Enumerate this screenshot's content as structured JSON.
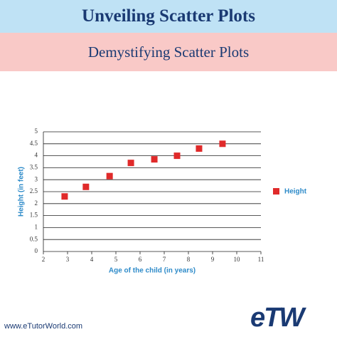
{
  "chart_data": {
    "type": "scatter",
    "title": "Unveiling Scatter Plots",
    "subtitle": "Demystifying Scatter Plots",
    "xlabel": "Age of the child (in years)",
    "ylabel": "Height (in feet)",
    "series": [
      {
        "name": "Height",
        "color": "#e02a2a",
        "x": [
          2.88,
          3.76,
          4.74,
          5.62,
          6.59,
          7.53,
          8.44,
          9.41
        ],
        "values": [
          2.3,
          2.7,
          3.15,
          3.7,
          3.85,
          4.0,
          4.3,
          4.5
        ]
      }
    ],
    "xlim": [
      2,
      11
    ],
    "xticks": [
      2,
      3,
      4,
      5,
      6,
      7,
      8,
      9,
      10,
      11
    ],
    "ylim": [
      0,
      5
    ],
    "yticks": [
      0,
      0.5,
      1,
      1.5,
      2,
      2.5,
      3,
      3.5,
      4,
      4.5,
      5
    ],
    "grid": true
  },
  "footer": "www.eTutorWorld.com",
  "logo": "eTW"
}
